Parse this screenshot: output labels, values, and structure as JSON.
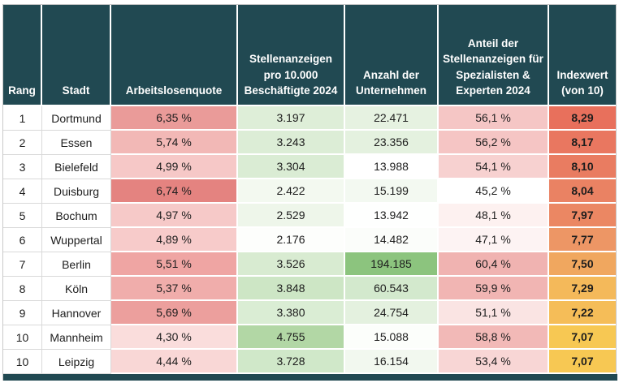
{
  "meta": {
    "header_bg": "#214952",
    "header_text_color": "#ffffff",
    "body_text_color": "#1d1d1d",
    "footer_bar_color": "#214952",
    "grid_line_color": "#d9d9d9"
  },
  "chart_data": {
    "type": "table",
    "legend_note": "heatmap table: red scale = unemployment rate / specialist share / index value, green scale = job ads and company counts",
    "columns": [
      {
        "key": "rang",
        "label": "Rang"
      },
      {
        "key": "stadt",
        "label": "Stadt"
      },
      {
        "key": "arbeitslosenquote",
        "label": "Arbeitslosenquote"
      },
      {
        "key": "stellenanzeigen",
        "label": "Stellenanzeigen pro 10.000 Beschäftigte 2024"
      },
      {
        "key": "unternehmen",
        "label": "Anzahl der Unternehmen"
      },
      {
        "key": "anteil",
        "label": "Anteil der Stellenanzeigen für Spezialisten & Experten 2024"
      },
      {
        "key": "indexwert",
        "label": "Indexwert (von 10)"
      }
    ],
    "rows": [
      {
        "cells": {
          "rang": {
            "text": "1"
          },
          "stadt": {
            "text": "Dortmund"
          },
          "arbeitslosenquote": {
            "text": "6,35 %",
            "bg": "#EA9B99"
          },
          "stellenanzeigen": {
            "text": "3.197",
            "bg": "#DEEED8"
          },
          "unternehmen": {
            "text": "22.471",
            "bg": "#E6F2E1"
          },
          "anteil": {
            "text": "56,1 %",
            "bg": "#F5C6C5"
          },
          "indexwert": {
            "text": "8,29",
            "bg": "#E8705C"
          }
        }
      },
      {
        "cells": {
          "rang": {
            "text": "2"
          },
          "stadt": {
            "text": "Essen"
          },
          "arbeitslosenquote": {
            "text": "5,74 %",
            "bg": "#F2B8B6"
          },
          "stellenanzeigen": {
            "text": "3.243",
            "bg": "#DCEDD6"
          },
          "unternehmen": {
            "text": "23.356",
            "bg": "#E4F1DF"
          },
          "anteil": {
            "text": "56,2 %",
            "bg": "#F5C5C4"
          },
          "indexwert": {
            "text": "8,17",
            "bg": "#E97760"
          }
        }
      },
      {
        "cells": {
          "rang": {
            "text": "3"
          },
          "stadt": {
            "text": "Bielefeld"
          },
          "arbeitslosenquote": {
            "text": "4,99 %",
            "bg": "#F6C8C7"
          },
          "stellenanzeigen": {
            "text": "3.304",
            "bg": "#DAECD4"
          },
          "unternehmen": {
            "text": "13.988",
            "bg": "#FFFFFF"
          },
          "anteil": {
            "text": "54,1 %",
            "bg": "#F7D1D0"
          },
          "indexwert": {
            "text": "8,10",
            "bg": "#E97C61"
          }
        }
      },
      {
        "cells": {
          "rang": {
            "text": "4"
          },
          "stadt": {
            "text": "Duisburg"
          },
          "arbeitslosenquote": {
            "text": "6,74 %",
            "bg": "#E48380"
          },
          "stellenanzeigen": {
            "text": "2.422",
            "bg": "#F3F9F0"
          },
          "unternehmen": {
            "text": "15.199",
            "bg": "#F3F9F1"
          },
          "anteil": {
            "text": "45,2 %",
            "bg": "#FFFFFF"
          },
          "indexwert": {
            "text": "8,04",
            "bg": "#EA8263"
          }
        }
      },
      {
        "cells": {
          "rang": {
            "text": "5"
          },
          "stadt": {
            "text": "Bochum"
          },
          "arbeitslosenquote": {
            "text": "4,97 %",
            "bg": "#F6C9C8"
          },
          "stellenanzeigen": {
            "text": "2.529",
            "bg": "#EEF6EA"
          },
          "unternehmen": {
            "text": "13.942",
            "bg": "#FEFFFE"
          },
          "anteil": {
            "text": "48,1 %",
            "bg": "#FDF1F0"
          },
          "indexwert": {
            "text": "7,97",
            "bg": "#EB8763"
          }
        }
      },
      {
        "cells": {
          "rang": {
            "text": "6"
          },
          "stadt": {
            "text": "Wuppertal"
          },
          "arbeitslosenquote": {
            "text": "4,89 %",
            "bg": "#F7CBCA"
          },
          "stellenanzeigen": {
            "text": "2.176",
            "bg": "#FDFEFC"
          },
          "unternehmen": {
            "text": "14.482",
            "bg": "#FBFDFA"
          },
          "anteil": {
            "text": "47,1 %",
            "bg": "#FDF3F3"
          },
          "indexwert": {
            "text": "7,77",
            "bg": "#ED9665"
          }
        }
      },
      {
        "cells": {
          "rang": {
            "text": "7"
          },
          "stadt": {
            "text": "Berlin"
          },
          "arbeitslosenquote": {
            "text": "5,51 %",
            "bg": "#EFA5A3"
          },
          "stellenanzeigen": {
            "text": "3.526",
            "bg": "#D8EBD1"
          },
          "unternehmen": {
            "text": "194.185",
            "bg": "#8CC47E"
          },
          "anteil": {
            "text": "60,4 %",
            "bg": "#F0B3B1"
          },
          "indexwert": {
            "text": "7,50",
            "bg": "#F0A75F"
          }
        }
      },
      {
        "cells": {
          "rang": {
            "text": "8"
          },
          "stadt": {
            "text": "Köln"
          },
          "arbeitslosenquote": {
            "text": "5,37 %",
            "bg": "#F0ADAB"
          },
          "stellenanzeigen": {
            "text": "3.848",
            "bg": "#CDE6C5"
          },
          "unternehmen": {
            "text": "60.543",
            "bg": "#D3E9CD"
          },
          "anteil": {
            "text": "59,9 %",
            "bg": "#F1B5B3"
          },
          "indexwert": {
            "text": "7,29",
            "bg": "#F4B95A"
          }
        }
      },
      {
        "cells": {
          "rang": {
            "text": "9"
          },
          "stadt": {
            "text": "Hannover"
          },
          "arbeitslosenquote": {
            "text": "5,69 %",
            "bg": "#EC9F9D"
          },
          "stellenanzeigen": {
            "text": "3.380",
            "bg": "#DAEDD4"
          },
          "unternehmen": {
            "text": "24.754",
            "bg": "#E4F1DF"
          },
          "anteil": {
            "text": "51,1 %",
            "bg": "#FAE4E3"
          },
          "indexwert": {
            "text": "7,22",
            "bg": "#F5BD58"
          }
        }
      },
      {
        "cells": {
          "rang": {
            "text": "10"
          },
          "stadt": {
            "text": "Mannheim"
          },
          "arbeitslosenquote": {
            "text": "4,30 %",
            "bg": "#FADDDC"
          },
          "stellenanzeigen": {
            "text": "4.755",
            "bg": "#B2D7A5"
          },
          "unternehmen": {
            "text": "15.088",
            "bg": "#FCFEFB"
          },
          "anteil": {
            "text": "58,8 %",
            "bg": "#F2B9B7"
          },
          "indexwert": {
            "text": "7,07",
            "bg": "#F7C853"
          }
        }
      },
      {
        "cells": {
          "rang": {
            "text": "10"
          },
          "stadt": {
            "text": "Leipzig"
          },
          "arbeitslosenquote": {
            "text": "4,44 %",
            "bg": "#F9D7D6"
          },
          "stellenanzeigen": {
            "text": "3.728",
            "bg": "#D0E8C9"
          },
          "unternehmen": {
            "text": "16.154",
            "bg": "#F2F8EF"
          },
          "anteil": {
            "text": "53,4 %",
            "bg": "#F8D6D5"
          },
          "indexwert": {
            "text": "7,07",
            "bg": "#F7C853"
          }
        }
      }
    ]
  }
}
